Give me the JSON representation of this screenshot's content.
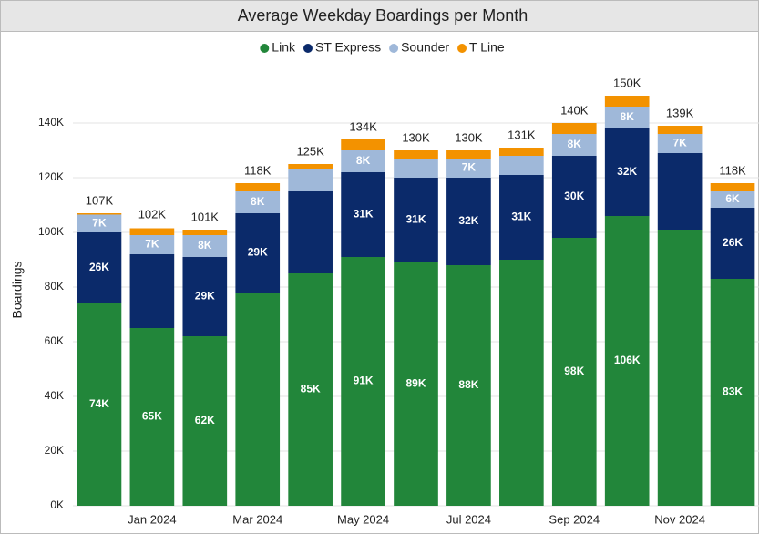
{
  "chart_data": {
    "type": "stacked_bar",
    "title": "Average Weekday Boardings per Month",
    "y_label": "Boardings",
    "categories": [
      null,
      "Jan 2024",
      null,
      "Mar 2024",
      null,
      "May 2024",
      null,
      "Jul 2024",
      null,
      "Sep 2024",
      null,
      "Nov 2024",
      null
    ],
    "series": [
      {
        "name": "Link",
        "color": "#22863a",
        "values": [
          74000,
          65000,
          62000,
          78000,
          85000,
          91000,
          89000,
          88000,
          90000,
          98000,
          106000,
          101000,
          83000
        ],
        "value_labels": [
          "74K",
          "65K",
          "62K",
          null,
          "85K",
          "91K",
          "89K",
          "88K",
          null,
          "98K",
          "106K",
          null,
          "83K"
        ]
      },
      {
        "name": "ST Express",
        "color": "#0b2a6a",
        "values": [
          26000,
          27000,
          29000,
          29000,
          30000,
          31000,
          31000,
          32000,
          31000,
          30000,
          32000,
          28000,
          26000
        ],
        "value_labels": [
          "26K",
          null,
          "29K",
          "29K",
          null,
          "31K",
          "31K",
          "32K",
          "31K",
          "30K",
          "32K",
          null,
          "26K"
        ]
      },
      {
        "name": "Sounder",
        "color": "#9fb8d9",
        "values": [
          6500,
          7000,
          8000,
          8000,
          8000,
          8000,
          7000,
          7000,
          7000,
          8000,
          8000,
          7000,
          6000
        ],
        "value_labels": [
          "7K",
          "7K",
          "8K",
          "8K",
          null,
          "8K",
          null,
          "7K",
          null,
          "8K",
          "8K",
          "7K",
          "6K"
        ]
      },
      {
        "name": "T Line",
        "color": "#f39200",
        "values": [
          500,
          2500,
          2000,
          3000,
          2000,
          4000,
          3000,
          3000,
          3000,
          4000,
          4000,
          3000,
          3000
        ]
      }
    ],
    "totals": [
      107000,
      102000,
      101000,
      118000,
      125000,
      134000,
      130000,
      130000,
      131000,
      140000,
      150000,
      139000,
      118000
    ],
    "total_labels": [
      "107K",
      "102K",
      "101K",
      "118K",
      "125K",
      "134K",
      "130K",
      "130K",
      "131K",
      "140K",
      "150K",
      "139K",
      "118K"
    ],
    "ylim": [
      0,
      150000
    ],
    "yticks": [
      {
        "value": 0,
        "label": "0K"
      },
      {
        "value": 20000,
        "label": "20K"
      },
      {
        "value": 40000,
        "label": "40K"
      },
      {
        "value": 60000,
        "label": "60K"
      },
      {
        "value": 80000,
        "label": "80K"
      },
      {
        "value": 100000,
        "label": "100K"
      },
      {
        "value": 120000,
        "label": "120K"
      },
      {
        "value": 140000,
        "label": "140K"
      }
    ],
    "grid": true,
    "legend": "top"
  }
}
